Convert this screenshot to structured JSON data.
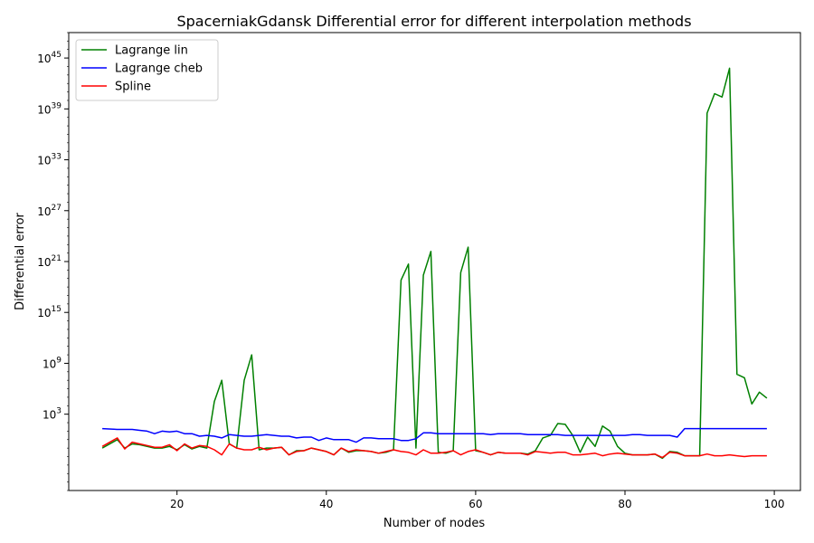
{
  "chart_data": {
    "type": "line",
    "title": "SpacerniakGdansk Differential error for different interpolation methods",
    "xlabel": "Number of nodes",
    "ylabel": "Differential error",
    "xlim": [
      5.5,
      103.5
    ],
    "ylim_log10": [
      -6,
      48
    ],
    "log_y": true,
    "x_ticks": [
      20,
      40,
      60,
      80,
      100
    ],
    "y_ticks_log10": [
      3,
      9,
      15,
      21,
      27,
      33,
      39,
      45
    ],
    "grid": false,
    "legend_position": "upper-left",
    "series": [
      {
        "name": "Lagrange lin",
        "color": "#008000",
        "x": [
          10,
          12,
          13,
          14,
          15,
          16,
          17,
          18,
          19,
          20,
          21,
          22,
          23,
          24,
          25,
          26,
          27,
          28,
          29,
          30,
          31,
          32,
          33,
          34,
          35,
          36,
          37,
          38,
          39,
          40,
          41,
          42,
          43,
          44,
          45,
          46,
          47,
          48,
          49,
          50,
          51,
          52,
          53,
          54,
          55,
          56,
          57,
          58,
          59,
          60,
          61,
          62,
          63,
          64,
          65,
          66,
          67,
          68,
          69,
          70,
          71,
          72,
          73,
          74,
          75,
          76,
          77,
          78,
          79,
          80,
          81,
          82,
          83,
          84,
          85,
          86,
          87,
          88,
          89,
          90,
          91,
          92,
          93,
          94,
          95,
          96,
          97,
          98,
          99
        ],
        "log10_values": [
          -1.0,
          0.0,
          -1.0,
          -0.5,
          -0.6,
          -0.8,
          -1.0,
          -1.0,
          -0.8,
          -1.2,
          -0.6,
          -1.1,
          -0.8,
          -1.0,
          4.5,
          7.0,
          -0.5,
          -1.0,
          7.0,
          10.0,
          -1.2,
          -1.0,
          -1.0,
          -0.9,
          -1.8,
          -1.3,
          -1.3,
          -1.0,
          -1.2,
          -1.4,
          -1.8,
          -1.0,
          -1.5,
          -1.3,
          -1.3,
          -1.4,
          -1.6,
          -1.5,
          -1.2,
          18.8,
          20.7,
          -1.0,
          19.4,
          22.2,
          -1.5,
          -1.6,
          -1.3,
          19.7,
          22.7,
          -1.3,
          -1.5,
          -1.8,
          -1.5,
          -1.6,
          -1.6,
          -1.6,
          -1.7,
          -1.3,
          0.2,
          0.5,
          1.9,
          1.8,
          0.5,
          -1.5,
          0.3,
          -0.8,
          1.6,
          1.0,
          -0.8,
          -1.6,
          -1.8,
          -1.8,
          -1.8,
          -1.7,
          -2.2,
          -1.4,
          -1.5,
          -1.9,
          -1.9,
          -1.9,
          38.5,
          40.8,
          40.4,
          43.8,
          7.7,
          7.3,
          4.2,
          5.6,
          4.9
        ]
      },
      {
        "name": "Lagrange cheb",
        "color": "#0000ff",
        "x": [
          10,
          12,
          13,
          14,
          15,
          16,
          17,
          18,
          19,
          20,
          21,
          22,
          23,
          24,
          25,
          26,
          27,
          28,
          29,
          30,
          31,
          32,
          33,
          34,
          35,
          36,
          37,
          38,
          39,
          40,
          41,
          42,
          43,
          44,
          45,
          46,
          47,
          48,
          49,
          50,
          51,
          52,
          53,
          54,
          55,
          56,
          57,
          58,
          59,
          60,
          61,
          62,
          63,
          64,
          65,
          66,
          67,
          68,
          69,
          70,
          71,
          72,
          73,
          74,
          75,
          76,
          77,
          78,
          79,
          80,
          81,
          82,
          83,
          84,
          85,
          86,
          87,
          88,
          89,
          90,
          91,
          92,
          93,
          94,
          95,
          96,
          97,
          98,
          99
        ],
        "log10_values": [
          1.3,
          1.2,
          1.2,
          1.2,
          1.1,
          1.0,
          0.7,
          1.0,
          0.9,
          1.0,
          0.7,
          0.7,
          0.4,
          0.5,
          0.4,
          0.2,
          0.6,
          0.5,
          0.4,
          0.4,
          0.5,
          0.6,
          0.5,
          0.4,
          0.4,
          0.2,
          0.3,
          0.3,
          -0.1,
          0.2,
          0.0,
          0.0,
          0.0,
          -0.3,
          0.2,
          0.2,
          0.1,
          0.1,
          0.1,
          -0.1,
          -0.1,
          0.1,
          0.8,
          0.8,
          0.7,
          0.7,
          0.7,
          0.7,
          0.7,
          0.7,
          0.7,
          0.6,
          0.7,
          0.7,
          0.7,
          0.7,
          0.6,
          0.6,
          0.6,
          0.6,
          0.6,
          0.5,
          0.5,
          0.5,
          0.5,
          0.5,
          0.5,
          0.5,
          0.5,
          0.5,
          0.6,
          0.6,
          0.5,
          0.5,
          0.5,
          0.5,
          0.3,
          1.3,
          1.3,
          1.3,
          1.3,
          1.3,
          1.3,
          1.3,
          1.3,
          1.3,
          1.3,
          1.3,
          1.3
        ]
      },
      {
        "name": "Spline",
        "color": "#ff0000",
        "x": [
          10,
          12,
          13,
          14,
          15,
          16,
          17,
          18,
          19,
          20,
          21,
          22,
          23,
          24,
          25,
          26,
          27,
          28,
          29,
          30,
          31,
          32,
          33,
          34,
          35,
          36,
          37,
          38,
          39,
          40,
          41,
          42,
          43,
          44,
          45,
          46,
          47,
          48,
          49,
          50,
          51,
          52,
          53,
          54,
          55,
          56,
          57,
          58,
          59,
          60,
          61,
          62,
          63,
          64,
          65,
          66,
          67,
          68,
          69,
          70,
          71,
          72,
          73,
          74,
          75,
          76,
          77,
          78,
          79,
          80,
          81,
          82,
          83,
          84,
          85,
          86,
          87,
          88,
          89,
          90,
          91,
          92,
          93,
          94,
          95,
          96,
          97,
          98,
          99
        ],
        "log10_values": [
          -0.8,
          0.2,
          -1.1,
          -0.3,
          -0.5,
          -0.7,
          -0.9,
          -0.9,
          -0.6,
          -1.3,
          -0.5,
          -1.0,
          -0.7,
          -0.8,
          -1.2,
          -1.8,
          -0.5,
          -1.0,
          -1.2,
          -1.2,
          -0.9,
          -1.2,
          -1.0,
          -0.9,
          -1.8,
          -1.4,
          -1.3,
          -1.0,
          -1.2,
          -1.4,
          -1.8,
          -1.0,
          -1.4,
          -1.2,
          -1.3,
          -1.4,
          -1.6,
          -1.4,
          -1.2,
          -1.4,
          -1.5,
          -1.8,
          -1.2,
          -1.6,
          -1.6,
          -1.5,
          -1.3,
          -1.8,
          -1.4,
          -1.2,
          -1.5,
          -1.8,
          -1.5,
          -1.6,
          -1.6,
          -1.6,
          -1.8,
          -1.4,
          -1.5,
          -1.6,
          -1.5,
          -1.5,
          -1.8,
          -1.8,
          -1.7,
          -1.6,
          -1.9,
          -1.7,
          -1.6,
          -1.7,
          -1.8,
          -1.8,
          -1.8,
          -1.7,
          -2.1,
          -1.5,
          -1.6,
          -1.9,
          -1.9,
          -1.9,
          -1.7,
          -1.9,
          -1.9,
          -1.8,
          -1.9,
          -2.0,
          -1.9,
          -1.9,
          -1.9
        ]
      }
    ]
  }
}
